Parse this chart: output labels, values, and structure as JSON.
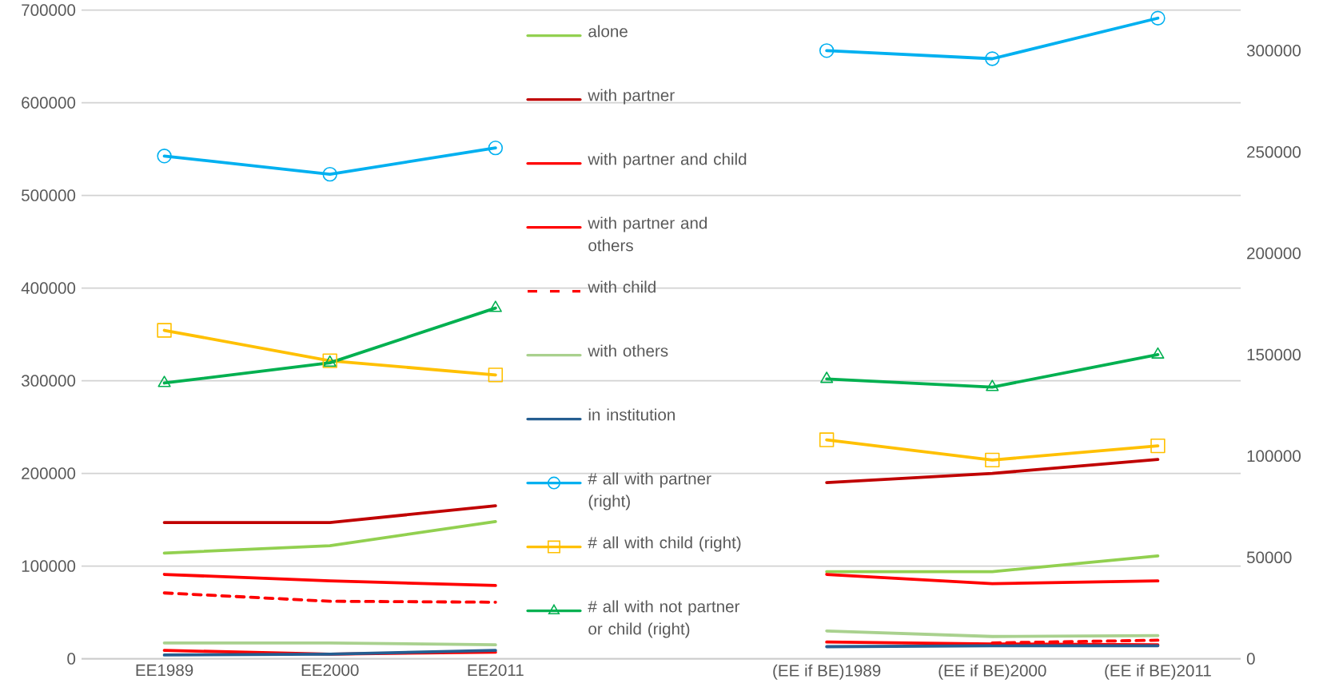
{
  "chart_data": {
    "type": "line",
    "categories": [
      "EE1989",
      "EE2000",
      "EE2011",
      null,
      "(EE if BE)1989",
      "(EE if BE)2000",
      "(EE if BE)2011"
    ],
    "ylim": [
      0,
      700000
    ],
    "yticks": [
      0,
      100000,
      200000,
      300000,
      400000,
      500000,
      600000,
      700000
    ],
    "y2lim": [
      0,
      320000
    ],
    "y2ticks": [
      0,
      50000,
      100000,
      150000,
      200000,
      250000,
      300000
    ],
    "grid": "y",
    "legend": "top",
    "series": [
      {
        "name": "alone",
        "color": "#92d050",
        "line_style": "solid",
        "values": [
          114000,
          122000,
          148000,
          null,
          94000,
          94000,
          111000
        ]
      },
      {
        "name": "with partner",
        "color": "#c00000",
        "line_style": "solid",
        "values": [
          147000,
          147000,
          165000,
          null,
          190000,
          200000,
          215000
        ]
      },
      {
        "name": "with partner and child",
        "color": "#ff0000",
        "line_style": "solid",
        "values": [
          91000,
          84000,
          79000,
          null,
          91000,
          81000,
          84000
        ]
      },
      {
        "name": "with partner and others",
        "color": "#ff0000",
        "line_style": "solid",
        "values": [
          9000,
          5000,
          7000,
          null,
          18000,
          16000,
          15000
        ]
      },
      {
        "name": "with child",
        "color": "#fe0000",
        "line_style": "dashed",
        "values": [
          71000,
          62000,
          61000,
          null,
          null,
          17000,
          20000
        ]
      },
      {
        "name": "with others",
        "color": "#a9d18e",
        "line_style": "solid",
        "values": [
          17000,
          17000,
          15000,
          null,
          30000,
          24000,
          25000
        ]
      },
      {
        "name": "in institution",
        "color": "#255e91",
        "line_style": "solid",
        "values": [
          4000,
          5000,
          9000,
          null,
          13000,
          14000,
          14000
        ]
      },
      {
        "name": "# all with partner (right)",
        "color": "#00b0f0",
        "axis": "y2",
        "marker": "circle",
        "values": [
          248000,
          239000,
          252000,
          null,
          300000,
          296000,
          316000
        ]
      },
      {
        "name": "# all with child (right)",
        "color": "#ffc000",
        "axis": "y2",
        "marker": "square",
        "values": [
          162000,
          147000,
          140000,
          null,
          108000,
          98000,
          105000
        ]
      },
      {
        "name": "# all with not partner or child (right)",
        "color": "#00b050",
        "axis": "y2",
        "marker": "triangle",
        "values": [
          136000,
          146000,
          173000,
          null,
          138000,
          134000,
          150000
        ]
      }
    ]
  }
}
